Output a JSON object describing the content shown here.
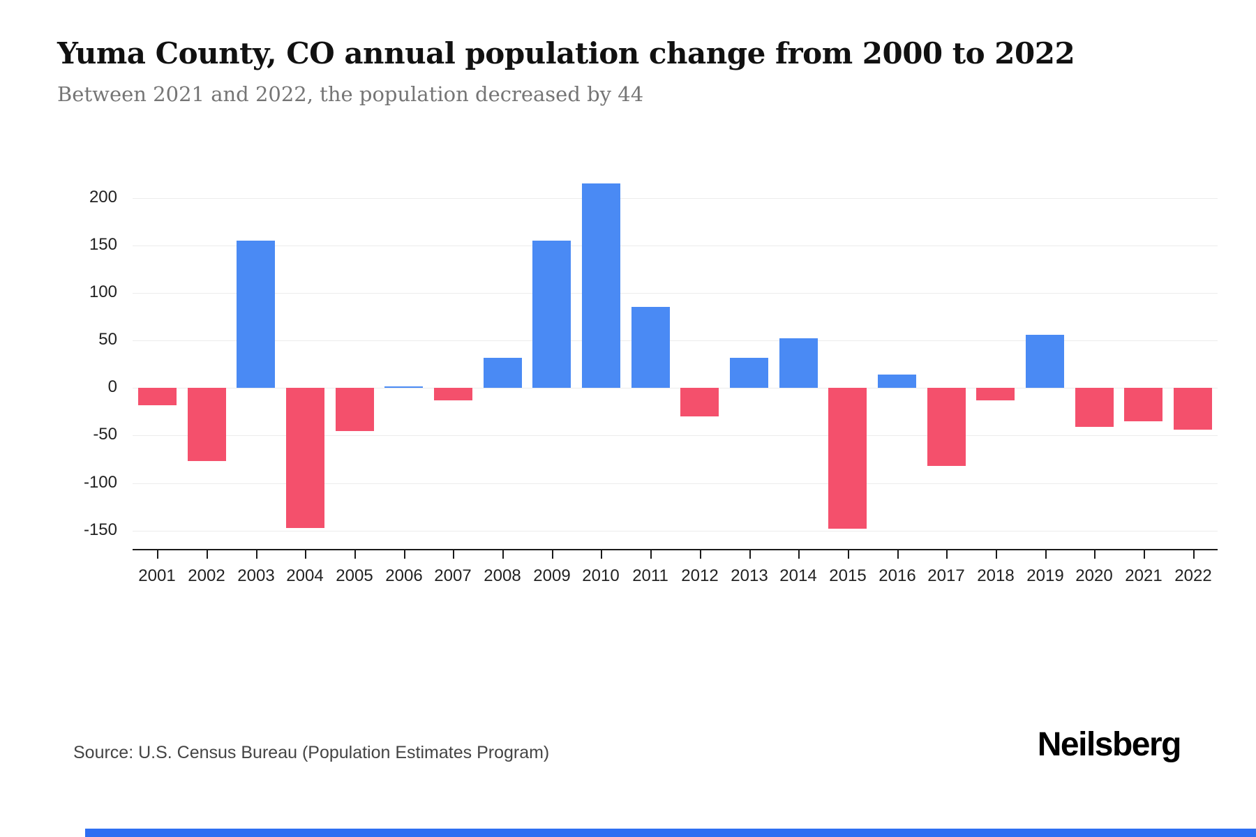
{
  "page": {
    "title": "Yuma County, CO annual population change from 2000 to 2022",
    "subtitle": "Between 2021 and 2022, the population decreased by 44",
    "source": "Source: U.S. Census Bureau (Population Estimates Program)",
    "brand": "Neilsberg"
  },
  "colors": {
    "positive": "#4a8af4",
    "negative": "#f4506c",
    "grid": "#ececec",
    "axis": "#1a1a1a",
    "accent_bar": "#2e6ff2"
  },
  "chart_data": {
    "type": "bar",
    "title": "Yuma County, CO annual population change from 2000 to 2022",
    "subtitle": "Between 2021 and 2022, the population decreased by 44",
    "categories": [
      "2001",
      "2002",
      "2003",
      "2004",
      "2005",
      "2006",
      "2007",
      "2008",
      "2009",
      "2010",
      "2011",
      "2012",
      "2013",
      "2014",
      "2015",
      "2016",
      "2017",
      "2018",
      "2019",
      "2020",
      "2021",
      "2022"
    ],
    "values": [
      -18,
      -77,
      155,
      -147,
      -45,
      2,
      -13,
      32,
      155,
      215,
      85,
      -30,
      32,
      52,
      -148,
      14,
      -82,
      -13,
      56,
      -41,
      -35,
      -44
    ],
    "xlabel": "",
    "ylabel": "",
    "ylim": [
      -170,
      232
    ],
    "yticks": [
      200,
      150,
      100,
      50,
      0,
      -50,
      -100,
      -150
    ],
    "grid": true,
    "legend": false,
    "positive_color": "#4a8af4",
    "negative_color": "#f4506c"
  }
}
